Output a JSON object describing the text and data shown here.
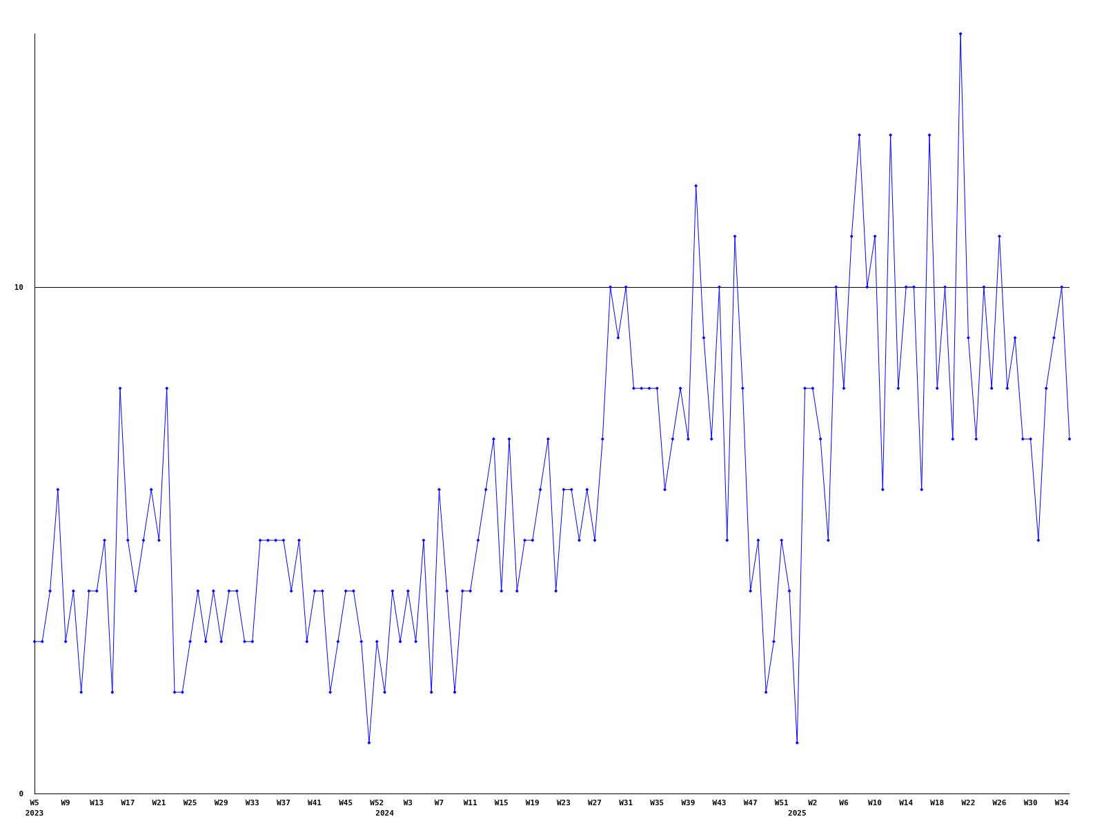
{
  "chart_data": {
    "type": "line",
    "categories": [
      "W5\n2023",
      null,
      null,
      null,
      "W9",
      null,
      null,
      null,
      "W13",
      null,
      null,
      null,
      "W17",
      null,
      null,
      null,
      "W21",
      null,
      null,
      null,
      "W25",
      null,
      null,
      null,
      "W29",
      null,
      null,
      null,
      "W33",
      null,
      null,
      null,
      "W37",
      null,
      null,
      null,
      "W41",
      null,
      null,
      null,
      "W45",
      null,
      null,
      null,
      "W52",
      "2024",
      null,
      null,
      "W3",
      null,
      null,
      null,
      "W7",
      null,
      null,
      null,
      "W11",
      null,
      null,
      null,
      "W15",
      null,
      null,
      null,
      "W19",
      null,
      null,
      null,
      "W23",
      null,
      null,
      null,
      "W27",
      null,
      null,
      null,
      "W31",
      null,
      null,
      null,
      "W35",
      null,
      null,
      null,
      "W39",
      null,
      null,
      null,
      "W43",
      null,
      null,
      null,
      "W47",
      null,
      null,
      null,
      "W51",
      null,
      "2025",
      null,
      "W2",
      null,
      null,
      null,
      "W6",
      null,
      null,
      null,
      "W10",
      null,
      null,
      null,
      "W14",
      null,
      null,
      null,
      "W18",
      null,
      null,
      null,
      "W22",
      null,
      null,
      null,
      "W26",
      null,
      null,
      null,
      "W30",
      null,
      null,
      null,
      "W34",
      null
    ],
    "series": [
      {
        "color": "#0000ff",
        "values": [
          3,
          3,
          4,
          6,
          3,
          4,
          2,
          4,
          4,
          5,
          2,
          8,
          5,
          4,
          5,
          6,
          5,
          8,
          2,
          2,
          3,
          4,
          3,
          4,
          3,
          4,
          4,
          3,
          3,
          5,
          5,
          5,
          5,
          4,
          5,
          3,
          4,
          4,
          2,
          3,
          4,
          4,
          3,
          1,
          3,
          2,
          4,
          3,
          4,
          3,
          5,
          2,
          6,
          4,
          2,
          4,
          4,
          5,
          6,
          7,
          4,
          7,
          4,
          5,
          5,
          6,
          7,
          4,
          6,
          6,
          5,
          6,
          5,
          7,
          10,
          9,
          10,
          8,
          8,
          8,
          8,
          6,
          7,
          8,
          7,
          12,
          9,
          7,
          10,
          5,
          11,
          8,
          4,
          5,
          2,
          3,
          5,
          4,
          1,
          8,
          8,
          7,
          5,
          10,
          8,
          11,
          13,
          10,
          11,
          6,
          13,
          8,
          10,
          10,
          6,
          13,
          8,
          10,
          7,
          15,
          9,
          7,
          10,
          8,
          11,
          8,
          9,
          7,
          7,
          5,
          8,
          9,
          10,
          7
        ]
      }
    ],
    "ylim": [
      0,
      15
    ],
    "yticks": [
      0,
      10
    ],
    "grid": "y",
    "marker": "diamond",
    "line_style": "solid"
  }
}
